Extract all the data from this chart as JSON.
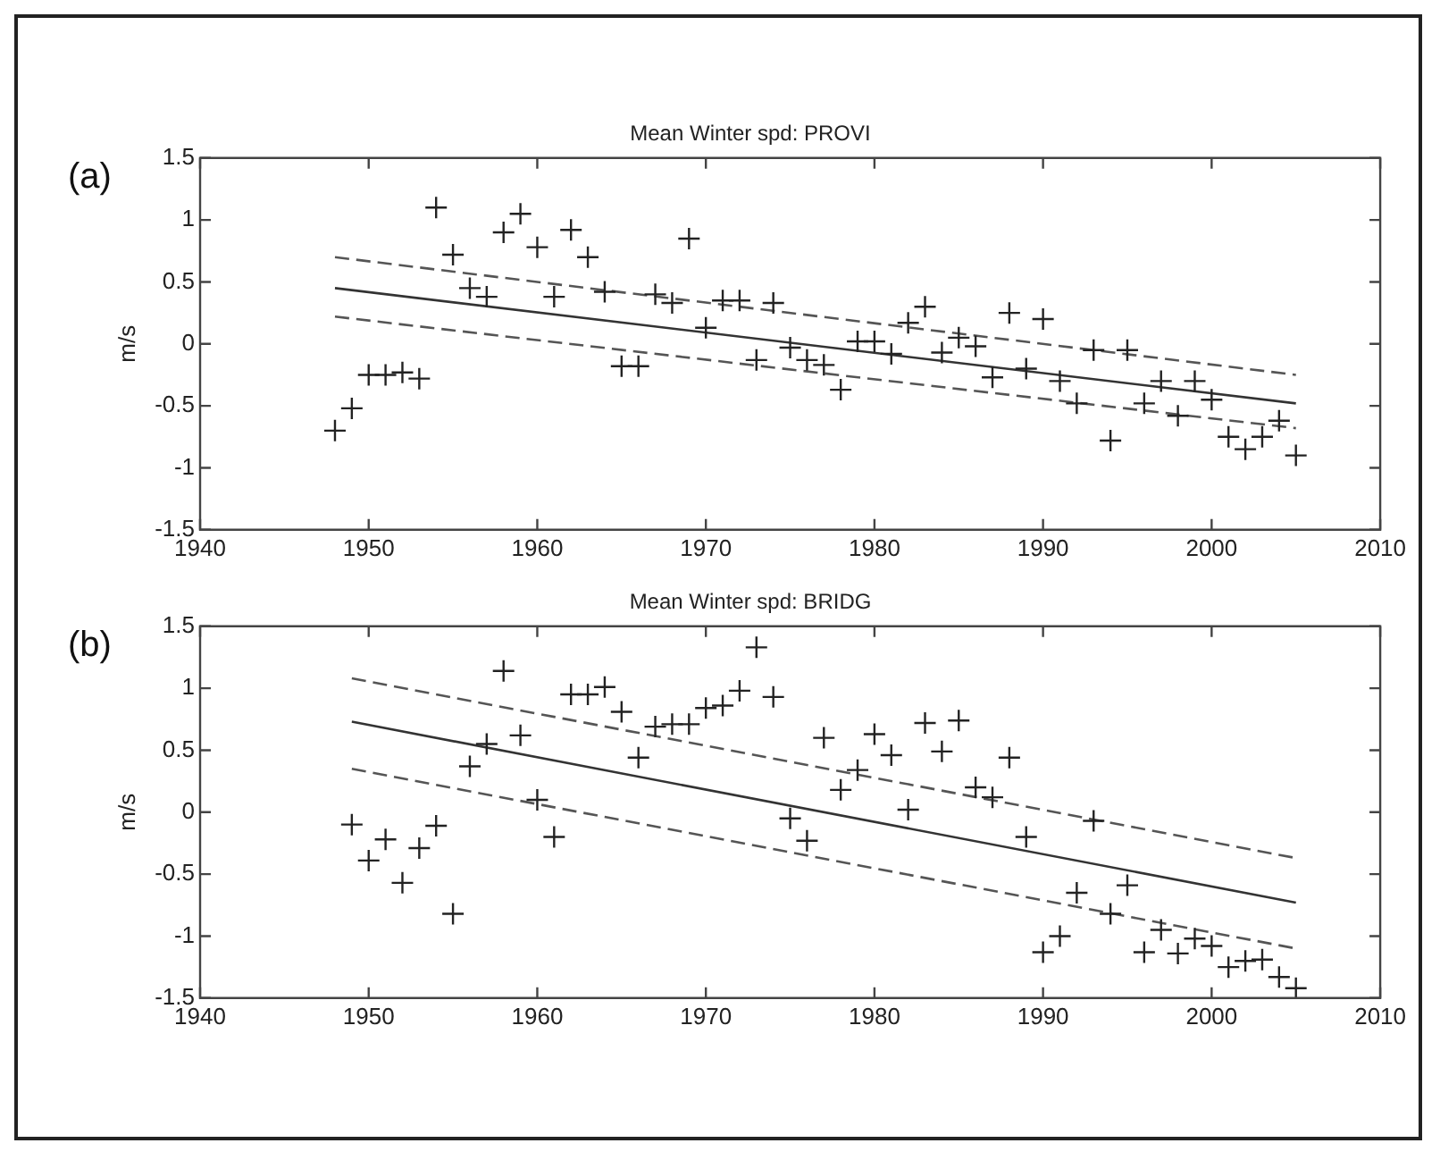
{
  "chart_data": [
    {
      "type": "scatter",
      "title": "Mean Winter spd: PROVI",
      "ylabel": "m/s",
      "annotations": [
        "(a)"
      ],
      "grid": false,
      "xlim": [
        1940,
        2010
      ],
      "xticks": [
        1940,
        1950,
        1960,
        1970,
        1980,
        1990,
        2000,
        2010
      ],
      "ylim": [
        -1.5,
        1.5
      ],
      "yticks": [
        -1.5,
        -1,
        -0.5,
        0,
        0.5,
        1,
        1.5
      ],
      "series": [
        {
          "marker": "cross",
          "color": "#222222",
          "x": [
            1948,
            1949,
            1950,
            1951,
            1952,
            1953,
            1954,
            1955,
            1956,
            1957,
            1958,
            1959,
            1960,
            1961,
            1962,
            1963,
            1964,
            1965,
            1966,
            1967,
            1968,
            1969,
            1970,
            1971,
            1972,
            1973,
            1974,
            1975,
            1976,
            1977,
            1978,
            1979,
            1980,
            1981,
            1982,
            1983,
            1984,
            1985,
            1986,
            1987,
            1988,
            1989,
            1990,
            1991,
            1992,
            1993,
            1994,
            1995,
            1996,
            1997,
            1998,
            1999,
            2000,
            2001,
            2002,
            2003,
            2004,
            2005
          ],
          "values": [
            -0.7,
            -0.52,
            -0.25,
            -0.25,
            -0.23,
            -0.28,
            1.1,
            0.72,
            0.45,
            0.38,
            0.9,
            1.05,
            0.78,
            0.38,
            0.92,
            0.7,
            0.42,
            -0.18,
            -0.18,
            0.4,
            0.33,
            0.85,
            0.13,
            0.35,
            0.35,
            -0.13,
            0.33,
            -0.03,
            -0.13,
            -0.17,
            -0.37,
            0.02,
            0.02,
            -0.08,
            0.17,
            0.3,
            -0.07,
            0.05,
            -0.02,
            -0.27,
            0.25,
            -0.2,
            0.2,
            -0.3,
            -0.48,
            -0.05,
            -0.78,
            -0.05,
            -0.48,
            -0.3,
            -0.58,
            -0.3,
            -0.45,
            -0.75,
            -0.85,
            -0.75,
            -0.62,
            -0.9
          ]
        },
        {
          "type": "line",
          "color": "#333333",
          "line_style": "solid",
          "x": [
            1948,
            2005
          ],
          "values": [
            0.45,
            -0.48
          ]
        },
        {
          "type": "line",
          "color": "#555555",
          "line_style": "dashed",
          "x": [
            1948,
            2005
          ],
          "values": [
            0.7,
            -0.25
          ]
        },
        {
          "type": "line",
          "color": "#555555",
          "line_style": "dashed",
          "x": [
            1948,
            2005
          ],
          "values": [
            0.22,
            -0.68
          ]
        }
      ]
    },
    {
      "type": "scatter",
      "title": "Mean Winter spd: BRIDG",
      "ylabel": "m/s",
      "annotations": [
        "(b)"
      ],
      "grid": false,
      "xlim": [
        1940,
        2010
      ],
      "xticks": [
        1940,
        1950,
        1960,
        1970,
        1980,
        1990,
        2000,
        2010
      ],
      "ylim": [
        -1.5,
        1.5
      ],
      "yticks": [
        -1.5,
        -1,
        -0.5,
        0,
        0.5,
        1,
        1.5
      ],
      "series": [
        {
          "marker": "cross",
          "color": "#222222",
          "x": [
            1949,
            1950,
            1951,
            1952,
            1953,
            1954,
            1955,
            1956,
            1957,
            1958,
            1959,
            1960,
            1961,
            1962,
            1963,
            1964,
            1965,
            1966,
            1967,
            1968,
            1969,
            1970,
            1971,
            1972,
            1973,
            1974,
            1975,
            1976,
            1977,
            1978,
            1979,
            1980,
            1981,
            1982,
            1983,
            1984,
            1985,
            1986,
            1987,
            1988,
            1989,
            1990,
            1991,
            1992,
            1993,
            1994,
            1995,
            1996,
            1997,
            1998,
            1999,
            2000,
            2001,
            2002,
            2003,
            2004,
            2005
          ],
          "values": [
            -0.1,
            -0.39,
            -0.22,
            -0.57,
            -0.29,
            -0.11,
            -0.82,
            0.37,
            0.55,
            1.14,
            0.62,
            0.1,
            -0.2,
            0.95,
            0.95,
            1.01,
            0.81,
            0.44,
            0.69,
            0.71,
            0.71,
            0.84,
            0.86,
            0.98,
            1.33,
            0.93,
            -0.05,
            -0.23,
            0.6,
            0.18,
            0.34,
            0.63,
            0.46,
            0.02,
            0.72,
            0.49,
            0.74,
            0.2,
            0.12,
            0.44,
            -0.2,
            -1.13,
            -1,
            -0.65,
            -0.07,
            -0.82,
            -0.59,
            -1.13,
            -0.95,
            -1.14,
            -1.02,
            -1.08,
            -1.25,
            -1.2,
            -1.19,
            -1.33,
            -1.42
          ]
        },
        {
          "type": "line",
          "color": "#333333",
          "line_style": "solid",
          "x": [
            1949,
            2005
          ],
          "values": [
            0.73,
            -0.73
          ]
        },
        {
          "type": "line",
          "color": "#555555",
          "line_style": "dashed",
          "x": [
            1949,
            2005
          ],
          "values": [
            1.08,
            -0.37
          ]
        },
        {
          "type": "line",
          "color": "#555555",
          "line_style": "dashed",
          "x": [
            1949,
            2005
          ],
          "values": [
            0.35,
            -1.1
          ]
        }
      ]
    }
  ]
}
